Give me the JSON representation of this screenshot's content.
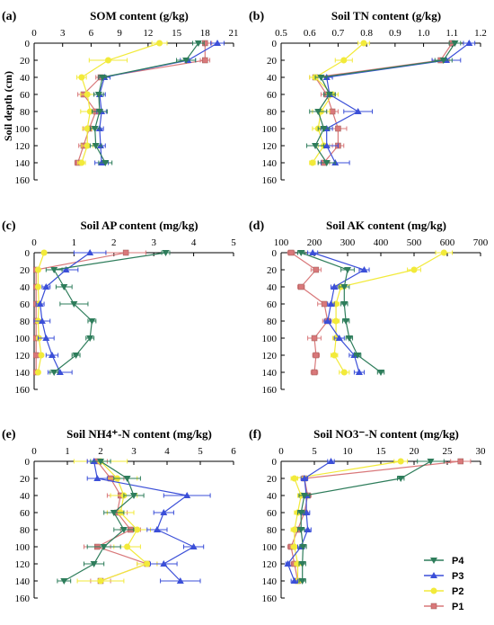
{
  "figure": {
    "ylabel": "Soil depth (cm)",
    "depth_ticks": [
      0,
      20,
      40,
      60,
      80,
      100,
      120,
      140,
      160
    ],
    "legend": [
      {
        "name": "P4",
        "color": "#2e7d5b",
        "marker": "tri-down"
      },
      {
        "name": "P3",
        "color": "#3b4fd8",
        "marker": "tri-up"
      },
      {
        "name": "P2",
        "color": "#f2ea3a",
        "marker": "circle"
      },
      {
        "name": "P1",
        "color": "#d9787a",
        "marker": "square"
      }
    ]
  },
  "chart_data": [
    {
      "type": "line",
      "panel": "(a)",
      "title": "SOM content (g/kg)",
      "xlim": [
        0,
        21
      ],
      "xticks": [
        "0",
        "3",
        "6",
        "9",
        "12",
        "15",
        "18",
        "21"
      ],
      "ylim": [
        0,
        160
      ],
      "y": [
        0,
        20,
        40,
        60,
        80,
        100,
        120,
        140
      ],
      "series": [
        {
          "name": "P4",
          "x": [
            17.3,
            16.0,
            7.2,
            6.8,
            6.9,
            6.4,
            6.5,
            7.5
          ],
          "err": [
            0.6,
            1.0,
            0.4,
            0.5,
            0.8,
            0.5,
            0.6,
            0.7
          ]
        },
        {
          "name": "P3",
          "x": [
            19.3,
            16.2,
            7.4,
            6.9,
            7.1,
            6.9,
            7.0,
            7.1
          ],
          "err": [
            0.7,
            0.8,
            0.6,
            0.6,
            0.5,
            0.4,
            0.5,
            0.7
          ]
        },
        {
          "name": "P2",
          "x": [
            13.2,
            7.8,
            5.0,
            5.6,
            5.9,
            5.6,
            5.6,
            5.0
          ],
          "err": [
            0.8,
            2.0,
            0.5,
            0.7,
            1.0,
            0.5,
            0.6,
            0.4
          ]
        },
        {
          "name": "P1",
          "x": [
            18.0,
            18.0,
            7.0,
            5.2,
            6.5,
            5.8,
            5.2,
            4.6
          ],
          "err": [
            0.7,
            0.5,
            0.5,
            0.6,
            0.7,
            0.6,
            0.5,
            0.3
          ]
        }
      ]
    },
    {
      "type": "line",
      "panel": "(b)",
      "title": "Soil TN content (g/kg)",
      "xlim": [
        0.5,
        1.2
      ],
      "xticks": [
        "0.5",
        "0.6",
        "0.7",
        "0.8",
        "0.9",
        "1.0",
        "1.1",
        "1.2"
      ],
      "ylim": [
        0,
        160
      ],
      "y": [
        0,
        20,
        40,
        60,
        80,
        100,
        120,
        140
      ],
      "series": [
        {
          "name": "P4",
          "x": [
            1.11,
            1.07,
            0.64,
            0.67,
            0.63,
            0.65,
            0.62,
            0.66
          ],
          "err": [
            0.02,
            0.03,
            0.02,
            0.02,
            0.03,
            0.02,
            0.03,
            0.03
          ]
        },
        {
          "name": "P3",
          "x": [
            1.16,
            1.08,
            0.66,
            0.67,
            0.77,
            0.66,
            0.66,
            0.69
          ],
          "err": [
            0.02,
            0.05,
            0.02,
            0.02,
            0.05,
            0.02,
            0.04,
            0.05
          ]
        },
        {
          "name": "P2",
          "x": [
            0.79,
            0.72,
            0.62,
            0.68,
            0.64,
            0.63,
            0.65,
            0.61
          ],
          "err": [
            0.02,
            0.03,
            0.02,
            0.02,
            0.03,
            0.02,
            0.02,
            0.01
          ]
        },
        {
          "name": "P1",
          "x": [
            1.1,
            1.06,
            0.62,
            0.66,
            0.68,
            0.7,
            0.7,
            0.65
          ],
          "err": [
            0.01,
            0.03,
            0.02,
            0.02,
            0.02,
            0.03,
            0.02,
            0.02
          ]
        }
      ]
    },
    {
      "type": "line",
      "panel": "(c)",
      "title": "Soil AP content (mg/kg)",
      "xlim": [
        0,
        5
      ],
      "xticks": [
        "0",
        "1",
        "2",
        "3",
        "4",
        "5"
      ],
      "ylim": [
        0,
        160
      ],
      "y": [
        0,
        20,
        40,
        60,
        80,
        100,
        120,
        140
      ],
      "series": [
        {
          "name": "P4",
          "x": [
            3.3,
            0.5,
            0.75,
            1.0,
            1.45,
            1.4,
            1.05,
            0.5
          ],
          "err": [
            0.1,
            0.2,
            0.2,
            0.35,
            0.1,
            0.1,
            0.1,
            0.1
          ]
        },
        {
          "name": "P3",
          "x": [
            1.4,
            0.8,
            0.3,
            0.15,
            0.2,
            0.3,
            0.45,
            0.65
          ],
          "err": [
            0.4,
            0.3,
            0.1,
            0.1,
            0.2,
            0.2,
            0.15,
            0.3
          ]
        },
        {
          "name": "P2",
          "x": [
            0.25,
            0.1,
            0.1,
            0.12,
            0.1,
            0.12,
            0.18,
            0.1
          ],
          "err": [
            0.05,
            0.05,
            0.03,
            0.03,
            0.03,
            0.03,
            0.03,
            0.03
          ]
        },
        {
          "name": "P1",
          "x": [
            2.3,
            0.05,
            0.05,
            0.05,
            0.05,
            0.05,
            0.05,
            0.05
          ],
          "err": [
            0.5,
            0.03,
            0.02,
            0.02,
            0.02,
            0.02,
            0.02,
            0.02
          ]
        }
      ]
    },
    {
      "type": "line",
      "panel": "(d)",
      "title": "Soil AK content (mg/kg)",
      "xlim": [
        100,
        700
      ],
      "xticks": [
        "100",
        "200",
        "300",
        "400",
        "500",
        "600",
        "700"
      ],
      "ylim": [
        0,
        160
      ],
      "y": [
        0,
        20,
        40,
        60,
        80,
        100,
        120,
        140
      ],
      "series": [
        {
          "name": "P4",
          "x": [
            160,
            300,
            290,
            290,
            295,
            305,
            330,
            400
          ],
          "err": [
            10,
            20,
            15,
            10,
            10,
            10,
            10,
            10
          ]
        },
        {
          "name": "P3",
          "x": [
            195,
            350,
            260,
            250,
            240,
            275,
            320,
            335
          ],
          "err": [
            15,
            15,
            10,
            10,
            10,
            15,
            15,
            15
          ]
        },
        {
          "name": "P2",
          "x": [
            590,
            500,
            280,
            265,
            265,
            265,
            260,
            290
          ],
          "err": [
            25,
            20,
            15,
            10,
            10,
            10,
            10,
            15
          ]
        },
        {
          "name": "P1",
          "x": [
            130,
            205,
            160,
            230,
            240,
            200,
            205,
            200
          ],
          "err": [
            10,
            15,
            10,
            20,
            15,
            20,
            10,
            10
          ]
        }
      ]
    },
    {
      "type": "line",
      "panel": "(e)",
      "title": "Soil NH4⁺-N content (mg/kg)",
      "xlim": [
        0,
        6
      ],
      "xticks": [
        "0",
        "1",
        "2",
        "3",
        "4",
        "5",
        "6"
      ],
      "ylim": [
        0,
        160
      ],
      "y": [
        0,
        20,
        40,
        60,
        80,
        100,
        120,
        140
      ],
      "series": [
        {
          "name": "P4",
          "x": [
            2.0,
            2.8,
            3.0,
            2.4,
            2.7,
            2.1,
            1.8,
            0.9
          ],
          "err": [
            0.3,
            0.4,
            0.3,
            0.3,
            0.3,
            0.5,
            0.3,
            0.2
          ]
        },
        {
          "name": "P3",
          "x": [
            1.8,
            1.9,
            4.6,
            3.9,
            3.7,
            4.8,
            3.9,
            4.4
          ],
          "err": [
            0.2,
            0.3,
            0.7,
            0.3,
            0.3,
            0.3,
            0.4,
            0.6
          ]
        },
        {
          "name": "P2",
          "x": [
            2.0,
            2.5,
            2.7,
            2.6,
            3.1,
            2.8,
            3.4,
            2.0
          ],
          "err": [
            0.8,
            0.6,
            0.4,
            0.4,
            0.4,
            0.4,
            0.3,
            0.7
          ]
        },
        {
          "name": "P1",
          "x": [
            1.9,
            2.3,
            2.6,
            2.5,
            2.9,
            1.9,
            3.4,
            2.0
          ],
          "err": [
            0.3,
            0.4,
            0.4,
            0.3,
            0.3,
            0.4,
            0.3,
            0.3
          ]
        }
      ]
    },
    {
      "type": "line",
      "panel": "(f)",
      "title": "Soil NO3⁻-N content (mg/kg)",
      "xlim": [
        0,
        30
      ],
      "xticks": [
        "0",
        "5",
        "10",
        "15",
        "20",
        "25",
        "30"
      ],
      "ylim": [
        0,
        160
      ],
      "y": [
        0,
        20,
        40,
        60,
        80,
        100,
        120,
        140
      ],
      "series": [
        {
          "name": "P4",
          "x": [
            22.5,
            18.0,
            3.5,
            3.0,
            3.0,
            3.3,
            3.2,
            3.2
          ],
          "err": [
            2.0,
            0.5,
            0.8,
            0.5,
            0.5,
            0.5,
            0.5,
            0.5
          ]
        },
        {
          "name": "P3",
          "x": [
            7.5,
            3.5,
            3.8,
            3.8,
            4.0,
            3.0,
            1.0,
            2.0
          ],
          "err": [
            0.5,
            0.5,
            0.5,
            0.5,
            0.5,
            0.5,
            0.3,
            0.5
          ]
        },
        {
          "name": "P2",
          "x": [
            18.0,
            2.0,
            3.0,
            2.5,
            2.0,
            2.0,
            2.5,
            2.5
          ],
          "err": [
            1.0,
            0.5,
            0.5,
            0.5,
            0.5,
            0.5,
            0.5,
            0.5
          ]
        },
        {
          "name": "P1",
          "x": [
            27.0,
            3.5,
            4.0,
            3.5,
            2.5,
            1.5,
            2.0,
            2.5
          ],
          "err": [
            1.5,
            0.5,
            0.5,
            0.5,
            0.5,
            0.5,
            0.5,
            0.5
          ]
        }
      ]
    }
  ]
}
